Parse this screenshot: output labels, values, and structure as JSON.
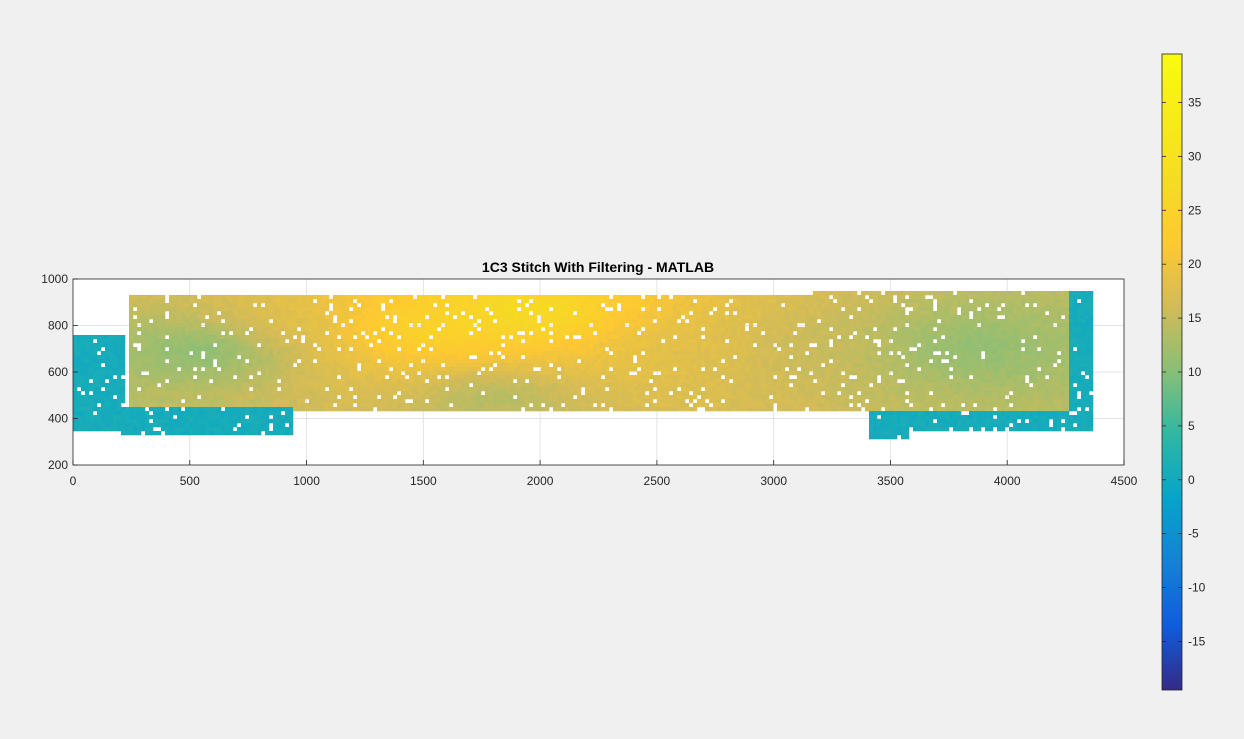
{
  "window": {
    "background": "#f0f0f0"
  },
  "chart_data": {
    "type": "scatter",
    "title": "1C3 Stitch With Filtering - MATLAB",
    "xlabel": "",
    "ylabel": "",
    "xlim": [
      0,
      4500
    ],
    "ylim": [
      200,
      1000
    ],
    "xticks": [
      0,
      500,
      1000,
      1500,
      2000,
      2500,
      3000,
      3500,
      4000,
      4500
    ],
    "yticks": [
      200,
      400,
      600,
      800,
      1000
    ],
    "grid": true,
    "colormap": "parula",
    "colorbar": {
      "location": "right",
      "clim": [
        -19.5,
        39.5
      ],
      "ticks": [
        -15,
        -10,
        -5,
        0,
        5,
        10,
        15,
        20,
        25,
        30,
        35
      ]
    },
    "point_cloud_regions": [
      {
        "x": [
          0,
          230
        ],
        "y": [
          350,
          760
        ],
        "value": 0
      },
      {
        "x": [
          200,
          950
        ],
        "y": [
          330,
          450
        ],
        "value": 0
      },
      {
        "x": [
          240,
          3200
        ],
        "y": [
          440,
          930
        ],
        "value": 8
      },
      {
        "x": [
          3160,
          4260
        ],
        "y": [
          440,
          950
        ],
        "value": 5
      },
      {
        "x": [
          3400,
          3580
        ],
        "y": [
          320,
          440
        ],
        "value": 0
      },
      {
        "x": [
          3580,
          4350
        ],
        "y": [
          340,
          440
        ],
        "value": 0
      },
      {
        "x": [
          4260,
          4360
        ],
        "y": [
          350,
          950
        ],
        "value": 0
      }
    ],
    "value_peaks": [
      {
        "x": 1950,
        "y": 850,
        "value": 30
      },
      {
        "x": 1500,
        "y": 780,
        "value": 27
      },
      {
        "x": 2600,
        "y": 700,
        "value": 18
      },
      {
        "x": 900,
        "y": 800,
        "value": 18
      },
      {
        "x": 3200,
        "y": 700,
        "value": 15
      },
      {
        "x": 3800,
        "y": 700,
        "value": 10
      },
      {
        "x": 600,
        "y": 700,
        "value": 8
      },
      {
        "x": 1800,
        "y": 500,
        "value": 12
      }
    ]
  }
}
